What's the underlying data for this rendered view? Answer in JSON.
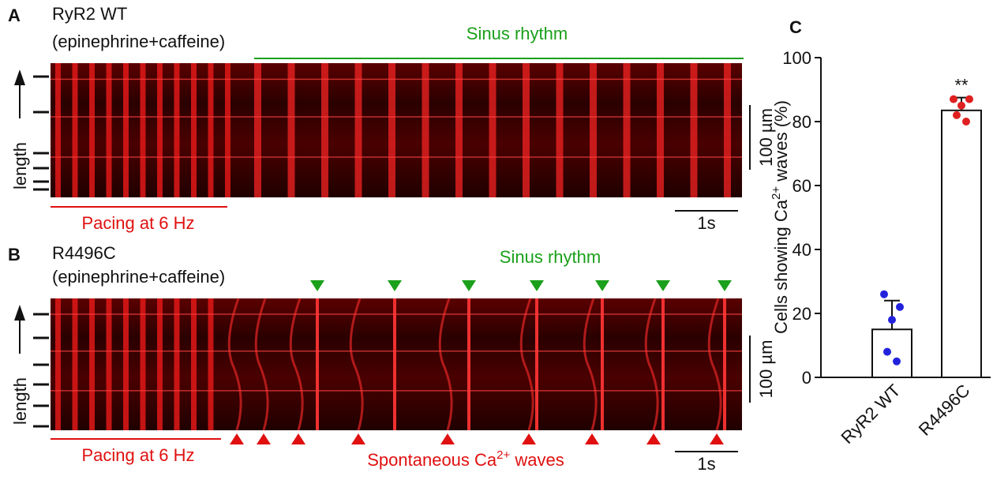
{
  "panels": [
    {
      "letter": "A",
      "title": "RyR2 WT",
      "condition": "(epinephrine+caffeine)",
      "rhythm_label": "Sinus rhythm",
      "pacing_label": "Pacing at 6 Hz",
      "axis_label": "length",
      "scale_length": "100 µm",
      "scale_time": "1s"
    },
    {
      "letter": "B",
      "title": "R4496C",
      "condition": "(epinephrine+caffeine)",
      "rhythm_label": "Sinus rhythm",
      "pacing_label": "Pacing at 6 Hz",
      "axis_label": "length",
      "scale_length": "100 µm",
      "scale_time": "1s",
      "wave_label": [
        "Spontaneous Ca",
        "2+",
        " waves"
      ]
    }
  ],
  "chart_data": {
    "type": "bar",
    "panel": "C",
    "y_label": [
      "Cells showing Ca",
      "2+",
      " waves (%)"
    ],
    "categories": [
      "RyR2 WT",
      "R4496C"
    ],
    "values": [
      15,
      83.5
    ],
    "errors": [
      9,
      4
    ],
    "points": [
      [
        26,
        22,
        18,
        8,
        5
      ],
      [
        87,
        87,
        85,
        82,
        80
      ]
    ],
    "point_colors": [
      "#2222dd",
      "#e02020"
    ],
    "significance": [
      null,
      "**"
    ],
    "ylim": [
      0,
      100
    ],
    "yticks": [
      0,
      20,
      40,
      60,
      80,
      100
    ]
  }
}
